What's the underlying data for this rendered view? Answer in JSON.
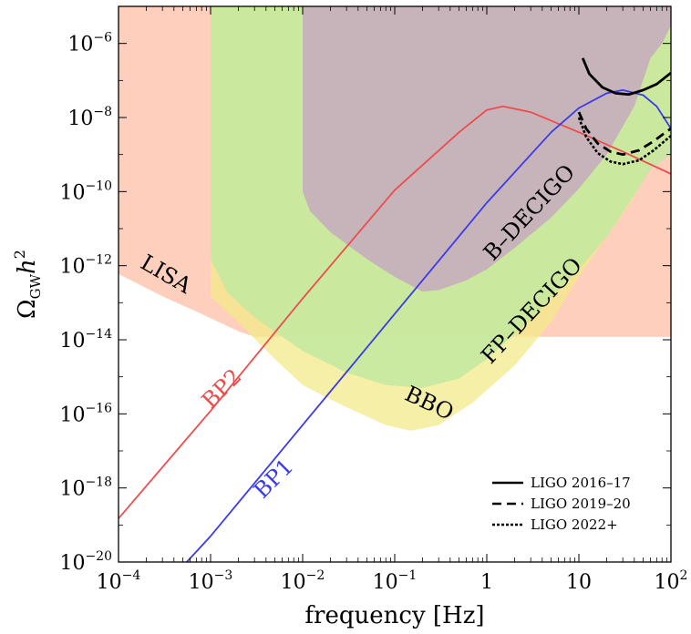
{
  "chart_data": {
    "type": "line",
    "xlabel": "frequency [Hz]",
    "ylabel": "Ω_GW h^2",
    "xscale": "log",
    "yscale": "log",
    "xlim": [
      0.0001,
      100
    ],
    "ylim": [
      1e-20,
      1e-05
    ],
    "x_ticks": [
      {
        "base": "10",
        "exp": "−4",
        "value": 0.0001
      },
      {
        "base": "10",
        "exp": "−3",
        "value": 0.001
      },
      {
        "base": "10",
        "exp": "−2",
        "value": 0.01
      },
      {
        "base": "10",
        "exp": "−1",
        "value": 0.1
      },
      {
        "base": "1",
        "exp": "",
        "value": 1
      },
      {
        "base": "10",
        "exp": "",
        "value": 10
      },
      {
        "base": "10",
        "exp": "2",
        "value": 100
      }
    ],
    "y_ticks": [
      {
        "base": "10",
        "exp": "−6",
        "value": 1e-06
      },
      {
        "base": "10",
        "exp": "−8",
        "value": 1e-08
      },
      {
        "base": "10",
        "exp": "−10",
        "value": 1e-10
      },
      {
        "base": "10",
        "exp": "−12",
        "value": 1e-12
      },
      {
        "base": "10",
        "exp": "−14",
        "value": 1e-14
      },
      {
        "base": "10",
        "exp": "−16",
        "value": 1e-16
      },
      {
        "base": "10",
        "exp": "−18",
        "value": 1e-18
      },
      {
        "base": "10",
        "exp": "−20",
        "value": 1e-20
      }
    ],
    "regions": [
      {
        "name": "LISA",
        "color": "#fdbfa6",
        "opacity": 0.75,
        "points": [
          [
            0.0001,
            1e-05
          ],
          [
            0.0001,
            6e-13
          ],
          [
            0.0003,
            1.5e-13
          ],
          [
            0.0008,
            5e-14
          ],
          [
            0.002,
            1.7e-14
          ],
          [
            0.003,
            1.2e-14
          ],
          [
            100,
            1.2e-14
          ],
          [
            100,
            1e-05
          ]
        ]
      },
      {
        "name": "BBO",
        "color": "#f3e98a",
        "opacity": 0.75,
        "points": [
          [
            0.001,
            1e-05
          ],
          [
            0.001,
            1.5e-13
          ],
          [
            0.002,
            3e-14
          ],
          [
            0.005,
            3e-15
          ],
          [
            0.01,
            6e-16
          ],
          [
            0.03,
            1.5e-16
          ],
          [
            0.08,
            5e-17
          ],
          [
            0.15,
            3.5e-17
          ],
          [
            0.3,
            5e-17
          ],
          [
            0.7,
            2e-16
          ],
          [
            2,
            2e-15
          ],
          [
            5,
            3e-14
          ],
          [
            10,
            5e-13
          ],
          [
            20,
            6e-12
          ],
          [
            40,
            7e-11
          ],
          [
            60,
            6e-10
          ],
          [
            100,
            3e-09
          ],
          [
            100,
            1e-05
          ]
        ]
      },
      {
        "name": "FP-DECIGO",
        "color": "#bfe9a0",
        "opacity": 0.8,
        "points": [
          [
            0.001,
            1e-05
          ],
          [
            0.001,
            1.5e-12
          ],
          [
            0.0015,
            2e-13
          ],
          [
            0.003,
            4e-14
          ],
          [
            0.006,
            1.2e-14
          ],
          [
            0.01,
            5e-15
          ],
          [
            0.03,
            1.3e-15
          ],
          [
            0.08,
            6e-16
          ],
          [
            0.2,
            5e-16
          ],
          [
            0.5,
            9e-16
          ],
          [
            1,
            3e-15
          ],
          [
            3,
            3.5e-14
          ],
          [
            10,
            8e-13
          ],
          [
            20,
            6e-12
          ],
          [
            40,
            8e-11
          ],
          [
            60,
            4e-10
          ],
          [
            100,
            1e-09
          ],
          [
            100,
            1e-05
          ]
        ]
      },
      {
        "name": "B-DECIGO",
        "color": "#c6acbe",
        "opacity": 0.88,
        "points": [
          [
            0.01,
            1e-05
          ],
          [
            0.01,
            1e-10
          ],
          [
            0.012,
            3e-11
          ],
          [
            0.02,
            8e-12
          ],
          [
            0.05,
            1.5e-12
          ],
          [
            0.1,
            5e-13
          ],
          [
            0.2,
            2e-13
          ],
          [
            0.3,
            2.2e-13
          ],
          [
            0.6,
            4e-13
          ],
          [
            1,
            8e-13
          ],
          [
            2,
            3e-12
          ],
          [
            5,
            2e-11
          ],
          [
            10,
            1.2e-10
          ],
          [
            20,
            1e-09
          ],
          [
            40,
            2e-08
          ],
          [
            60,
            4e-07
          ],
          [
            80,
            1e-06
          ],
          [
            100,
            3e-06
          ],
          [
            100,
            1e-05
          ]
        ]
      }
    ],
    "series": [
      {
        "name": "BP2",
        "color": "#ee4c4c",
        "width": 1.8,
        "dash": "",
        "points": [
          [
            0.0001,
            1.5e-19
          ],
          [
            0.001,
            1.2e-16
          ],
          [
            0.01,
            1.3e-13
          ],
          [
            0.1,
            1.1e-10
          ],
          [
            0.5,
            4e-09
          ],
          [
            1,
            1.6e-08
          ],
          [
            1.5,
            2e-08
          ],
          [
            3,
            1.4e-08
          ],
          [
            10,
            4e-09
          ],
          [
            30,
            1.2e-09
          ],
          [
            100,
            3e-10
          ]
        ]
      },
      {
        "name": "BP1",
        "color": "#3b3bea",
        "width": 1.8,
        "dash": "",
        "points": [
          [
            0.00055,
            1e-20
          ],
          [
            0.001,
            5e-20
          ],
          [
            0.01,
            5e-17
          ],
          [
            0.1,
            5e-14
          ],
          [
            1,
            5e-11
          ],
          [
            5,
            4e-09
          ],
          [
            10,
            1.8e-08
          ],
          [
            20,
            4.5e-08
          ],
          [
            30,
            5.5e-08
          ],
          [
            50,
            4e-08
          ],
          [
            70,
            2e-08
          ],
          [
            100,
            5e-09
          ]
        ]
      },
      {
        "name": "LIGO 2016–17",
        "color": "#000000",
        "width": 2.8,
        "dash": "",
        "points": [
          [
            11,
            4e-07
          ],
          [
            13,
            1.5e-07
          ],
          [
            18,
            6.5e-08
          ],
          [
            25,
            4.5e-08
          ],
          [
            35,
            4.2e-08
          ],
          [
            50,
            5.5e-08
          ],
          [
            70,
            8e-08
          ],
          [
            100,
            1.6e-07
          ]
        ]
      },
      {
        "name": "LIGO 2019–20",
        "color": "#000000",
        "width": 2.8,
        "dash": "10,6",
        "points": [
          [
            10,
            1.4e-08
          ],
          [
            12,
            5e-09
          ],
          [
            16,
            2e-09
          ],
          [
            22,
            1.2e-09
          ],
          [
            30,
            1e-09
          ],
          [
            45,
            1.3e-09
          ],
          [
            65,
            2.3e-09
          ],
          [
            85,
            3.8e-09
          ],
          [
            100,
            5e-09
          ]
        ]
      },
      {
        "name": "LIGO 2022+",
        "color": "#000000",
        "width": 2.6,
        "dash": "3,2",
        "points": [
          [
            10,
            1e-08
          ],
          [
            12,
            3e-09
          ],
          [
            16,
            1.1e-09
          ],
          [
            22,
            6.5e-10
          ],
          [
            30,
            5.5e-10
          ],
          [
            45,
            7e-10
          ],
          [
            65,
            1.3e-09
          ],
          [
            85,
            2.3e-09
          ],
          [
            100,
            3.2e-09
          ]
        ]
      }
    ],
    "region_labels": [
      {
        "text": "LISA",
        "x": 0.0003,
        "y": 4e-13,
        "angle": 30
      },
      {
        "text": "BBO",
        "x": 0.22,
        "y": 1.3e-16,
        "angle": 25
      },
      {
        "text": "FP–DECIGO",
        "x": 3.5,
        "y": 4.5e-14,
        "angle": -47
      },
      {
        "text": "B–DECIGO",
        "x": 3.3,
        "y": 2e-11,
        "angle": -47
      }
    ],
    "curve_labels": [
      {
        "text": "BP2",
        "x": 0.0015,
        "y": 3.5e-16,
        "angle": -45,
        "color": "#ee4c4c"
      },
      {
        "text": "BP1",
        "x": 0.0055,
        "y": 1.3e-18,
        "angle": -45,
        "color": "#3b3bea"
      }
    ],
    "legend": {
      "position": "bottom-right",
      "entries": [
        {
          "label": "LIGO 2016–17",
          "dash": ""
        },
        {
          "label": "LIGO 2019–20",
          "dash": "10,6"
        },
        {
          "label": "LIGO 2022+",
          "dash": "3,2"
        }
      ]
    }
  }
}
